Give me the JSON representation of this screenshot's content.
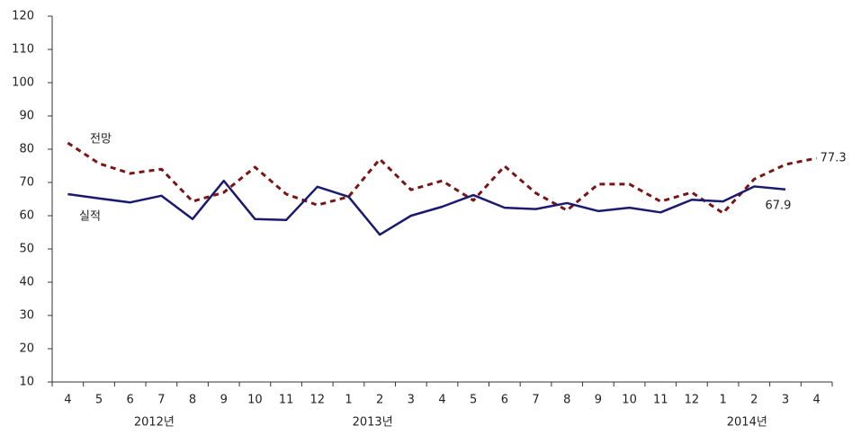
{
  "chart_data": {
    "type": "line",
    "categories": [
      "4",
      "5",
      "6",
      "7",
      "8",
      "9",
      "10",
      "11",
      "12",
      "1",
      "2",
      "3",
      "4",
      "5",
      "6",
      "7",
      "8",
      "9",
      "10",
      "11",
      "12",
      "1",
      "2",
      "3",
      "4"
    ],
    "years": [
      null,
      null,
      null,
      "2012년",
      null,
      null,
      null,
      null,
      null,
      null,
      "2013년",
      null,
      null,
      null,
      null,
      null,
      null,
      null,
      null,
      null,
      null,
      null,
      "2014년",
      null,
      null
    ],
    "series": [
      {
        "name": "전망",
        "color": "#7a1515",
        "dashed": true,
        "values": [
          81.9,
          75.7,
          72.7,
          74,
          64.3,
          67,
          74.6,
          66.5,
          63.2,
          65.7,
          77,
          67.8,
          70.5,
          64.6,
          74.9,
          66.8,
          61.6,
          69.5,
          69.5,
          64.3,
          67,
          60.8,
          71,
          75.4,
          77.3
        ],
        "value_labels": [
          null,
          null,
          null,
          null,
          null,
          null,
          null,
          null,
          null,
          null,
          null,
          null,
          null,
          null,
          null,
          null,
          null,
          null,
          null,
          null,
          null,
          null,
          null,
          null,
          "77.3"
        ]
      },
      {
        "name": "실적",
        "color": "#1a1a6e",
        "dashed": false,
        "values": [
          66.5,
          65.2,
          64,
          66,
          59,
          70.5,
          59,
          58.7,
          68.7,
          65.7,
          54.3,
          60,
          62.7,
          66.2,
          62.4,
          62,
          63.8,
          61.4,
          62.4,
          61,
          64.8,
          64.3,
          68.8,
          67.9,
          null
        ],
        "value_labels": [
          null,
          null,
          null,
          null,
          null,
          null,
          null,
          null,
          null,
          null,
          null,
          null,
          null,
          null,
          null,
          null,
          null,
          null,
          null,
          null,
          null,
          null,
          null,
          "67.9",
          null
        ]
      }
    ],
    "ylim": [
      10,
      120
    ],
    "yticks": [
      10,
      20,
      30,
      40,
      50,
      60,
      70,
      80,
      90,
      100,
      110,
      120
    ],
    "grid": false
  }
}
